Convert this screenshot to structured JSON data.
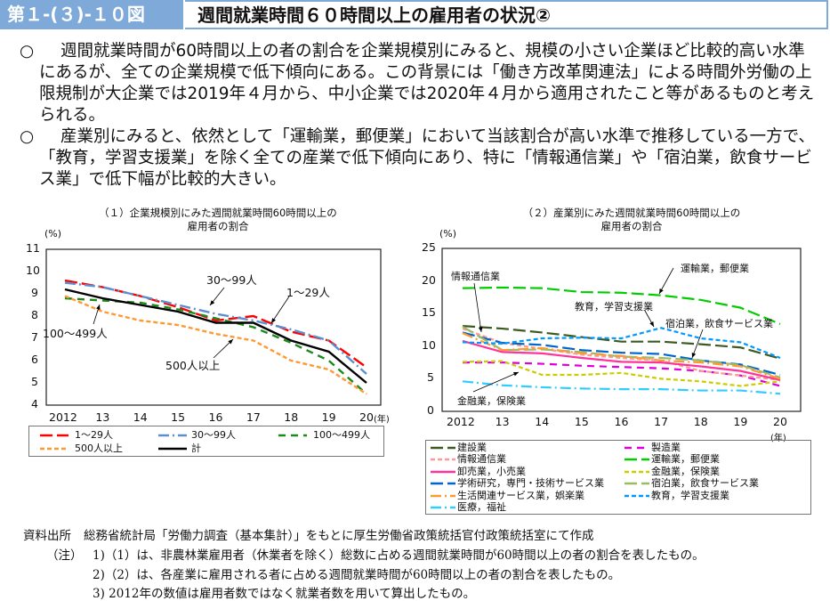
{
  "header": {
    "figure_number": "第１-(３)-１０図",
    "title": "週間就業時間６０時間以上の雇用者の状況②"
  },
  "paragraphs": [
    {
      "bullet": "○",
      "text": "週間就業時間が60時間以上の者の割合を企業規模別にみると、規模の小さい企業ほど比較的高い水準にあるが、全ての企業規模で低下傾向にある。この背景には「働き方改革関連法」による時間外労働の上限規制が大企業では2019年４月から、中小企業では2020年４月から適用されたこと等があるものと考えられる。"
    },
    {
      "bullet": "○",
      "text": "産業別にみると、依然として「運輸業，郵便業」において当該割合が高い水準で推移している一方で、「教育，学習支援業」を除く全ての産業で低下傾向にあり、特に「情報通信業」や「宿泊業，飲食サービス業」で低下幅が比較的大きい。"
    }
  ],
  "chart_data": [
    {
      "type": "line",
      "title": "（１）企業規模別にみた週間就業時間60時間以上の雇用者の割合",
      "title_lines": [
        "（１）企業規模別にみた週間就業時間60時間以上の",
        "雇用者の割合"
      ],
      "ylabel": "(%)",
      "xlabel": "(年)",
      "x": [
        2012,
        2013,
        2014,
        2015,
        2016,
        2017,
        2018,
        2019,
        2020
      ],
      "x_tick_labels": [
        "2012",
        "13",
        "14",
        "15",
        "16",
        "17",
        "18",
        "19",
        "20"
      ],
      "ylim": [
        4,
        11
      ],
      "y_ticks": [
        4,
        5,
        6,
        7,
        8,
        9,
        10,
        11
      ],
      "legend_position": "bottom",
      "series": [
        {
          "name": "1～29人",
          "color": "#ff0000",
          "style": "longdash",
          "values": [
            9.6,
            9.3,
            8.9,
            8.4,
            7.8,
            8.0,
            7.3,
            6.9,
            5.7
          ]
        },
        {
          "name": "30～99人",
          "color": "#5b8fd0",
          "style": "dashdot",
          "values": [
            9.5,
            9.3,
            8.9,
            8.5,
            8.1,
            7.8,
            7.4,
            6.9,
            5.4
          ]
        },
        {
          "name": "100～499人",
          "color": "#1a8a1a",
          "style": "dash",
          "values": [
            8.8,
            8.7,
            8.6,
            8.3,
            7.9,
            7.5,
            6.8,
            6.0,
            4.5
          ]
        },
        {
          "name": "500人以上",
          "color": "#ff9933",
          "style": "shortdash",
          "values": [
            8.9,
            8.2,
            7.8,
            7.6,
            7.2,
            6.9,
            6.0,
            5.6,
            4.5
          ]
        },
        {
          "name": "計",
          "color": "#000000",
          "style": "solid",
          "values": [
            9.2,
            8.8,
            8.5,
            8.2,
            7.7,
            7.7,
            6.9,
            6.4,
            5.0
          ]
        }
      ],
      "annotations": [
        "30～99人",
        "1～29人",
        "100～499人",
        "500人以上"
      ]
    },
    {
      "type": "line",
      "title": "（２）産業別にみた週間就業時間60時間以上の雇用者の割合",
      "title_lines": [
        "（２）産業別にみた週間就業時間60時間以上の",
        "雇用者の割合"
      ],
      "ylabel": "(%)",
      "xlabel": "(年)",
      "x": [
        2012,
        2013,
        2014,
        2015,
        2016,
        2017,
        2018,
        2019,
        2020
      ],
      "x_tick_labels": [
        "2012",
        "13",
        "14",
        "15",
        "16",
        "17",
        "18",
        "19",
        "20"
      ],
      "ylim": [
        0,
        25
      ],
      "y_ticks": [
        0,
        5,
        10,
        15,
        20,
        25
      ],
      "legend_position": "bottom",
      "series": [
        {
          "name": "建設業",
          "color": "#3d5a23",
          "style": "longdash",
          "values": [
            13.1,
            12.7,
            12.1,
            11.4,
            10.7,
            10.7,
            10.3,
            9.8,
            8.1
          ]
        },
        {
          "name": "製造業",
          "color": "#dd00dd",
          "style": "dash",
          "values": [
            7.5,
            7.5,
            7.3,
            7.0,
            6.8,
            6.6,
            6.2,
            5.5,
            3.9
          ]
        },
        {
          "name": "情報通信業",
          "color": "#ff9999",
          "style": "shortdash",
          "values": [
            12.7,
            10.5,
            9.6,
            8.7,
            8.2,
            7.8,
            6.2,
            5.5,
            4.8
          ]
        },
        {
          "name": "運輸業，郵便業",
          "color": "#00cc00",
          "style": "longdash",
          "values": [
            18.9,
            19.0,
            18.9,
            18.3,
            18.2,
            17.8,
            17.1,
            15.9,
            13.4
          ]
        },
        {
          "name": "卸売業，小売業",
          "color": "#ff3399",
          "style": "solid",
          "values": [
            10.8,
            9.1,
            8.9,
            8.2,
            7.6,
            7.5,
            6.9,
            6.2,
            4.8
          ]
        },
        {
          "name": "金融業，保険業",
          "color": "#cccc00",
          "style": "shortdash",
          "values": [
            7.6,
            7.7,
            5.6,
            5.6,
            5.9,
            5.0,
            4.6,
            3.9,
            4.6
          ]
        },
        {
          "name": "学術研究，専門・技術サービス業",
          "color": "#0066cc",
          "style": "longdash",
          "values": [
            12.1,
            10.5,
            10.2,
            9.4,
            9.0,
            8.8,
            7.8,
            7.2,
            5.6
          ]
        },
        {
          "name": "宿泊業，飲食サービス業",
          "color": "#99bb66",
          "style": "longdash",
          "values": [
            13.0,
            9.4,
            9.5,
            9.1,
            8.4,
            8.2,
            7.8,
            7.1,
            5.2
          ]
        },
        {
          "name": "生活関連サービス業，娯楽業",
          "color": "#ff9933",
          "style": "dashdot",
          "values": [
            12.0,
            9.4,
            9.7,
            8.9,
            8.5,
            7.8,
            7.5,
            6.9,
            5.0
          ]
        },
        {
          "name": "教育，学習支援業",
          "color": "#0099ff",
          "style": "shortdash",
          "values": [
            10.6,
            10.4,
            11.2,
            11.3,
            11.2,
            12.8,
            11.2,
            10.6,
            8.2
          ]
        },
        {
          "name": "医療，福祉",
          "color": "#33ccff",
          "style": "dashdot",
          "values": [
            4.6,
            4.0,
            3.7,
            3.5,
            3.4,
            3.4,
            3.2,
            3.2,
            2.7
          ]
        }
      ],
      "annotations": [
        "情報通信業",
        "運輸業，郵便業",
        "教育，学習支援業",
        "宿泊業，飲食サービス業",
        "金融業，保険業"
      ]
    }
  ],
  "source": {
    "label": "資料出所",
    "text": "総務省統計局「労働力調査（基本集計）」をもとに厚生労働省政策統括官付政策統括室にて作成"
  },
  "notes": {
    "label": "（注）",
    "items": [
      "1)（1）は、非農林業雇用者（休業者を除く）総数に占める週間就業時間が60時間以上の者の割合を表したもの。",
      "2)（2）は、各産業に雇用される者に占める週間就業時間が60時間以上の者の割合を表したもの。",
      "3) 2012年の数値は雇用者数ではなく就業者数を用いて算出したもの。"
    ]
  }
}
